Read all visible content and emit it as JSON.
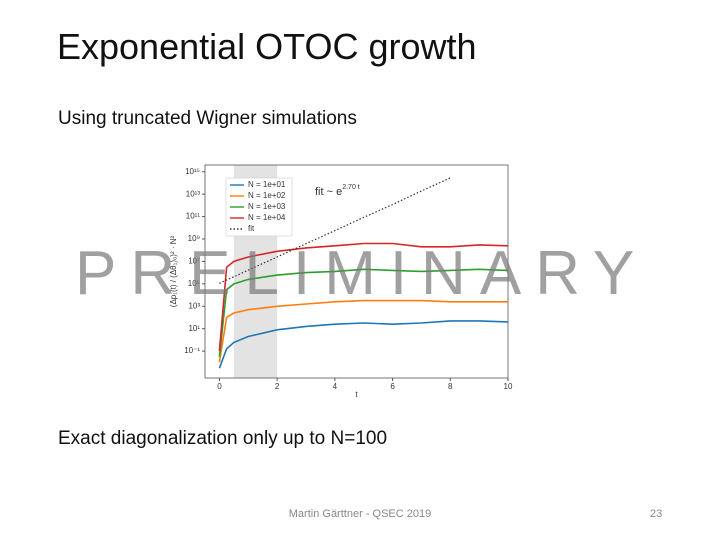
{
  "header": {
    "title": "Exponential OTOC growth"
  },
  "body": {
    "subtitle": "Using truncated Wigner simulations",
    "watermark": "PRELIMINARY",
    "note": "Exact diagonalization only up to N=100"
  },
  "footer": {
    "text": "Martin Gärttner - QSEC 2019",
    "page": "23"
  },
  "chart_data": {
    "type": "line",
    "log_y": true,
    "x_label": "t",
    "y_label": "(Δp₁(t) / (Δθ₁)₀)² · N²",
    "annotation": {
      "text": "fit ~ e",
      "exponent": "2.70 t"
    },
    "shaded_region": [
      0.5,
      2
    ],
    "x": [
      0,
      0.25,
      0.5,
      1,
      2,
      3,
      4,
      5,
      6,
      7,
      8,
      9,
      10
    ],
    "series": [
      {
        "name": "N = 1e+01",
        "color": "#1f77b4",
        "values": [
          0.003,
          0.16,
          0.6,
          2,
          8,
          16,
          25,
          32,
          25,
          32,
          50,
          50,
          40
        ]
      },
      {
        "name": "N = 1e+02",
        "color": "#ff7f0e",
        "values": [
          0.01,
          100,
          250,
          500,
          1000,
          1600,
          2500,
          3200,
          3200,
          3200,
          2500,
          2500,
          2500
        ]
      },
      {
        "name": "N = 1e+03",
        "color": "#2ca02c",
        "values": [
          0.03,
          30000,
          100000,
          250000,
          600000,
          1000000,
          1300000,
          2000000,
          1600000,
          1300000,
          1600000,
          2000000,
          1600000
        ]
      },
      {
        "name": "N = 1e+04",
        "color": "#d62728",
        "values": [
          0.1,
          3000000,
          10000000,
          25000000,
          80000000,
          160000000,
          250000000,
          400000000,
          400000000,
          200000000,
          200000000,
          300000000,
          250000000
        ]
      },
      {
        "name": "fit",
        "color": "#333333",
        "dashed": true,
        "values": [
          110000,
          220000,
          430000,
          1700000,
          25000000,
          380000000,
          5600000000,
          84000000000,
          1200000000000,
          19000000000000,
          280000000000000,
          null,
          null
        ]
      }
    ],
    "xlim": [
      -0.5,
      10
    ],
    "xticks": [
      0,
      2,
      4,
      6,
      8,
      10
    ],
    "ylim": [
      0.0004,
      4000000000000000
    ],
    "yticks": [
      {
        "value": 1000000000000000.0,
        "label": "10¹⁵"
      },
      {
        "value": 10000000000000.0,
        "label": "10¹³"
      },
      {
        "value": 100000000000.0,
        "label": "10¹¹"
      },
      {
        "value": 1000000000.0,
        "label": "10⁹"
      },
      {
        "value": 10000000.0,
        "label": "10⁷"
      },
      {
        "value": 100000,
        "label": "10⁵"
      },
      {
        "value": 1000,
        "label": "10³"
      },
      {
        "value": 10,
        "label": "10¹"
      },
      {
        "value": 0.1,
        "label": "10⁻¹"
      }
    ],
    "legend": "upper left"
  }
}
